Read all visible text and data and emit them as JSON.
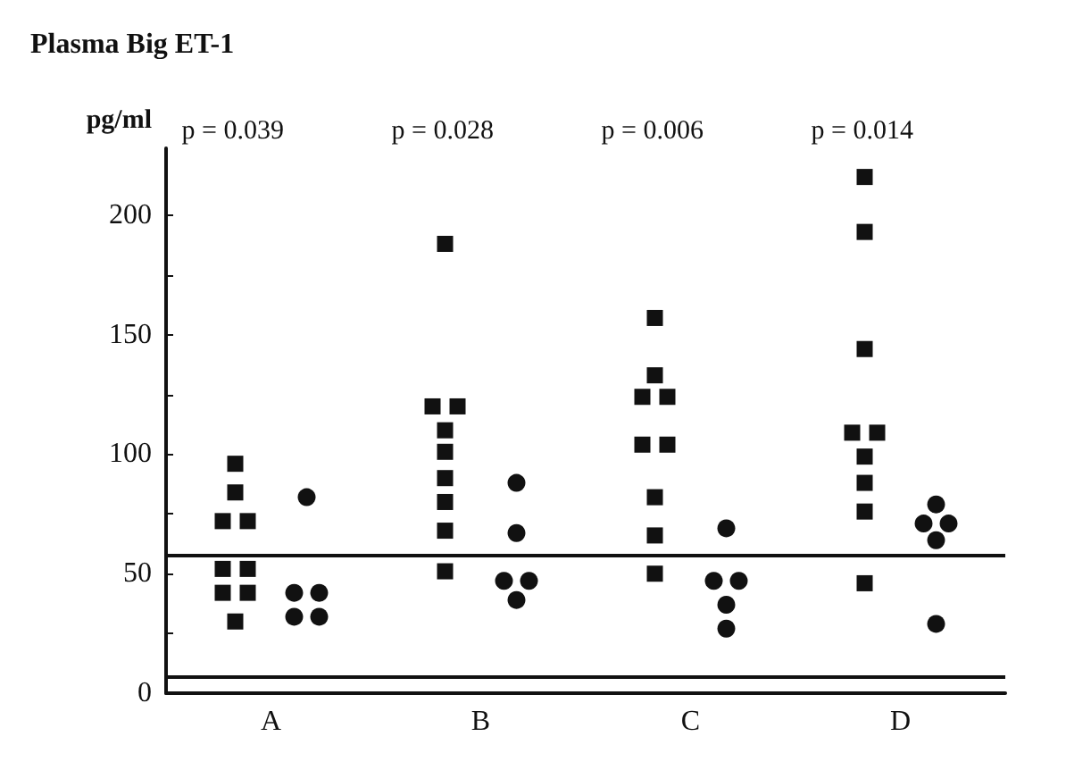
{
  "chart_data": {
    "type": "scatter",
    "title": "Plasma Big ET-1",
    "ylabel": "pg/ml",
    "categories": [
      "A",
      "B",
      "C",
      "D"
    ],
    "series": [
      {
        "color": "#111111",
        "marker": "square",
        "x": [
          "A",
          "A",
          "A",
          "A",
          "A",
          "A",
          "A",
          "A",
          "A",
          "B",
          "B",
          "B",
          "B",
          "B",
          "B",
          "B",
          "B",
          "B",
          "C",
          "C",
          "C",
          "C",
          "C",
          "C",
          "C",
          "C",
          "C",
          "D",
          "D",
          "D",
          "D",
          "D",
          "D",
          "D",
          "D",
          "D"
        ],
        "values": [
          96,
          84,
          72,
          72,
          52,
          52,
          42,
          42,
          30,
          188,
          120,
          120,
          110,
          101,
          90,
          80,
          68,
          51,
          157,
          133,
          124,
          124,
          104,
          104,
          82,
          66,
          50,
          216,
          193,
          144,
          109,
          109,
          99,
          88,
          76,
          46
        ]
      },
      {
        "color": "#111111",
        "marker": "circle",
        "x": [
          "A",
          "A",
          "A",
          "A",
          "A",
          "B",
          "B",
          "B",
          "B",
          "B",
          "C",
          "C",
          "C",
          "C",
          "C",
          "D",
          "D",
          "D",
          "D",
          "D"
        ],
        "values": [
          82,
          42,
          42,
          32,
          32,
          88,
          67,
          47,
          47,
          39,
          69,
          47,
          47,
          37,
          27,
          79,
          71,
          71,
          64,
          29
        ]
      }
    ],
    "annotations": [
      "p = 0.039",
      "p = 0.028",
      "p = 0.006",
      "p = 0.014"
    ],
    "ylim": [
      0,
      228
    ],
    "yticks": [
      0,
      {
        "value": 25,
        "label": null
      },
      50,
      {
        "value": 75,
        "label": null
      },
      100,
      {
        "value": 125,
        "label": null
      },
      150,
      {
        "value": 175,
        "label": null
      },
      200
    ],
    "ref_lines": [
      {
        "axis": "y",
        "value": 58,
        "color": "#111111"
      },
      {
        "axis": "y",
        "value": 7,
        "color": "#111111"
      }
    ],
    "grid": false
  }
}
